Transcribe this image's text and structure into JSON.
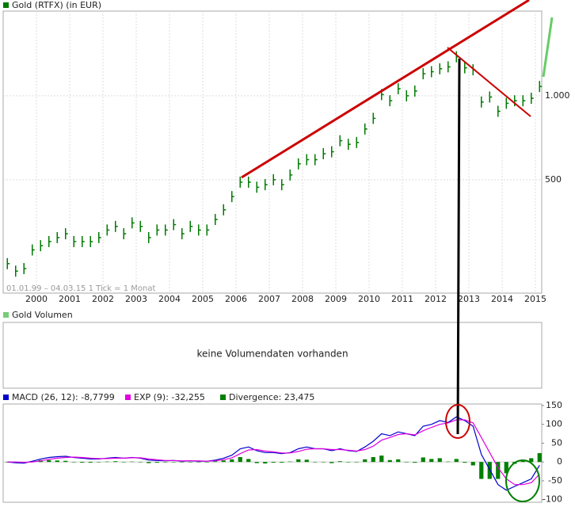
{
  "chart_data": [
    {
      "type": "price-bars",
      "title": "Gold (RTFX) (in EUR)",
      "subtitle": "01.01.99 – 04.03.15   1 Tick = 1 Monat",
      "log_scale": true,
      "grid": true,
      "color": "#007a00",
      "x": [
        1999.125,
        1999.375,
        1999.625,
        1999.875,
        2000.125,
        2000.375,
        2000.625,
        2000.875,
        2001.125,
        2001.375,
        2001.625,
        2001.875,
        2002.125,
        2002.375,
        2002.625,
        2002.875,
        2003.125,
        2003.375,
        2003.625,
        2003.875,
        2004.125,
        2004.375,
        2004.625,
        2004.875,
        2005.125,
        2005.375,
        2005.625,
        2005.875,
        2006.125,
        2006.375,
        2006.625,
        2006.875,
        2007.125,
        2007.375,
        2007.625,
        2007.875,
        2008.125,
        2008.375,
        2008.625,
        2008.875,
        2009.125,
        2009.375,
        2009.625,
        2009.875,
        2010.125,
        2010.375,
        2010.625,
        2010.875,
        2011.125,
        2011.375,
        2011.625,
        2011.875,
        2012.125,
        2012.375,
        2012.625,
        2012.875,
        2013.125,
        2013.375,
        2013.625,
        2013.875,
        2014.125,
        2014.375,
        2014.625,
        2014.875,
        2015.125
      ],
      "values": [
        250,
        235,
        240,
        280,
        290,
        300,
        310,
        320,
        300,
        300,
        300,
        310,
        330,
        340,
        320,
        350,
        340,
        310,
        330,
        330,
        345,
        320,
        340,
        330,
        330,
        360,
        390,
        435,
        490,
        490,
        470,
        480,
        500,
        480,
        520,
        570,
        590,
        590,
        620,
        630,
        690,
        670,
        680,
        760,
        830,
        1010,
        960,
        1060,
        1000,
        1040,
        1200,
        1220,
        1250,
        1270,
        1380,
        1260,
        1240,
        950,
        990,
        880,
        940,
        960,
        960,
        980,
        1080
      ],
      "xlim": [
        1999,
        2015.19
      ],
      "xticks": [
        2000,
        2001,
        2002,
        2003,
        2004,
        2005,
        2006,
        2007,
        2008,
        2009,
        2010,
        2011,
        2012,
        2013,
        2014,
        2015
      ],
      "ylim": [
        196,
        2013
      ],
      "yticks": [
        500,
        {
          "value": 1000,
          "label": "1.000"
        }
      ]
    },
    {
      "type": "macd",
      "grid": false,
      "x": [
        1999.125,
        1999.375,
        1999.625,
        1999.875,
        2000.125,
        2000.375,
        2000.625,
        2000.875,
        2001.125,
        2001.375,
        2001.625,
        2001.875,
        2002.125,
        2002.375,
        2002.625,
        2002.875,
        2003.125,
        2003.375,
        2003.625,
        2003.875,
        2004.125,
        2004.375,
        2004.625,
        2004.875,
        2005.125,
        2005.375,
        2005.625,
        2005.875,
        2006.125,
        2006.375,
        2006.625,
        2006.875,
        2007.125,
        2007.375,
        2007.625,
        2007.875,
        2008.125,
        2008.375,
        2008.625,
        2008.875,
        2009.125,
        2009.375,
        2009.625,
        2009.875,
        2010.125,
        2010.375,
        2010.625,
        2010.875,
        2011.125,
        2011.375,
        2011.625,
        2011.875,
        2012.125,
        2012.375,
        2012.625,
        2012.875,
        2013.125,
        2013.375,
        2013.625,
        2013.875,
        2014.125,
        2014.375,
        2014.625,
        2014.875,
        2015.125
      ],
      "xlim": [
        1999,
        2015.19
      ],
      "ylim": [
        -107,
        154
      ],
      "yticks": [
        150,
        100,
        50,
        0,
        -50,
        -100
      ],
      "series": [
        {
          "name": "MACD (26, 12): -8,7799",
          "color": "#0000cc",
          "style": "line",
          "values": [
            0,
            -2,
            -3,
            2,
            8,
            12,
            14,
            15,
            12,
            10,
            8,
            8,
            10,
            12,
            10,
            12,
            10,
            5,
            4,
            3,
            4,
            2,
            3,
            2,
            2,
            5,
            10,
            18,
            35,
            40,
            30,
            25,
            25,
            22,
            25,
            35,
            40,
            35,
            35,
            30,
            35,
            30,
            28,
            40,
            55,
            75,
            70,
            80,
            75,
            70,
            95,
            100,
            110,
            105,
            120,
            110,
            95,
            20,
            -20,
            -60,
            -75,
            -65,
            -55,
            -45,
            -8.7799
          ]
        },
        {
          "name": "EXP (9): -32,255",
          "color": "#e000e0",
          "style": "line",
          "values": [
            0,
            0,
            -1,
            0,
            3,
            7,
            10,
            12,
            13,
            12,
            10,
            9,
            9,
            10,
            10,
            11,
            11,
            8,
            6,
            4,
            4,
            3,
            3,
            3,
            2,
            3,
            6,
            11,
            22,
            32,
            33,
            29,
            27,
            24,
            24,
            28,
            34,
            35,
            35,
            33,
            33,
            31,
            29,
            33,
            42,
            58,
            65,
            73,
            75,
            72,
            83,
            92,
            100,
            104,
            112,
            112,
            104,
            65,
            25,
            -15,
            -45,
            -60,
            -60,
            -55,
            -32.255
          ]
        },
        {
          "name": "Divergence: 23,475",
          "color": "#008000",
          "style": "bar",
          "values": [
            0,
            -2,
            -2,
            2,
            5,
            5,
            4,
            3,
            -1,
            -2,
            -2,
            -1,
            1,
            2,
            0,
            1,
            -1,
            -3,
            -2,
            -1,
            0,
            -1,
            0,
            -1,
            0,
            2,
            4,
            7,
            13,
            8,
            -3,
            -4,
            -2,
            -2,
            1,
            7,
            6,
            0,
            0,
            -3,
            2,
            -1,
            -1,
            7,
            13,
            17,
            5,
            7,
            0,
            -2,
            12,
            8,
            10,
            1,
            8,
            -2,
            -9,
            -45,
            -45,
            -45,
            -30,
            -5,
            5,
            10,
            23.475
          ]
        }
      ]
    }
  ],
  "volume_panel": {
    "title": "Gold Volumen",
    "message": "keine Volumendaten vorhanden"
  }
}
